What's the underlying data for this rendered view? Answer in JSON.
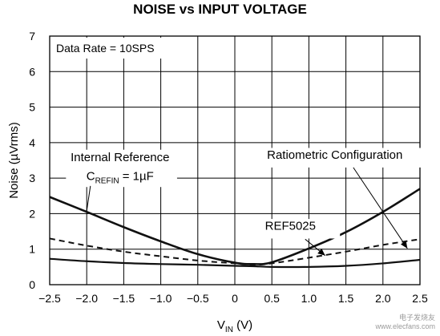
{
  "chart_data": {
    "type": "line",
    "title": "NOISE vs INPUT VOLTAGE",
    "xlabel": "V",
    "xlabel_sub": "IN",
    "xlabel_unit": " (V)",
    "ylabel": "Noise (µVrms)",
    "xlim": [
      -2.5,
      2.5
    ],
    "ylim": [
      0,
      7
    ],
    "xticks": [
      -2.5,
      -2.0,
      -1.5,
      -1.0,
      -0.5,
      0,
      0.5,
      1.0,
      1.5,
      2.0,
      2.5
    ],
    "xtick_labels": [
      "−2.5",
      "−2.0",
      "−1.5",
      "−1.0",
      "−0.5",
      "0",
      "0.5",
      "1.0",
      "1.5",
      "2.0",
      "2.5"
    ],
    "yticks": [
      0,
      1,
      2,
      3,
      4,
      5,
      6,
      7
    ],
    "ytick_labels": [
      "0",
      "1",
      "2",
      "3",
      "4",
      "5",
      "6",
      "7"
    ],
    "grid": true,
    "x": [
      -2.5,
      -2.0,
      -1.5,
      -1.0,
      -0.5,
      0,
      0.25,
      0.5,
      1.0,
      1.5,
      2.0,
      2.5
    ],
    "series": [
      {
        "style": "solid-bold",
        "values": [
          2.47,
          2.05,
          1.62,
          1.22,
          0.86,
          0.62,
          0.58,
          0.63,
          1.02,
          1.48,
          2.05,
          2.7
        ]
      },
      {
        "style": "dashed",
        "values": [
          1.3,
          1.1,
          0.93,
          0.8,
          0.68,
          0.6,
          0.56,
          0.6,
          0.76,
          0.93,
          1.12,
          1.28
        ]
      },
      {
        "style": "solid",
        "values": [
          0.73,
          0.66,
          0.61,
          0.58,
          0.56,
          0.53,
          0.52,
          0.5,
          0.5,
          0.53,
          0.6,
          0.7
        ]
      }
    ],
    "annotations": {
      "data_rate": "Data Rate = 10SPS",
      "internal_ref": "Internal Reference",
      "crefin_main": "C",
      "crefin_sub": "REFIN",
      "crefin_value": " = 1µF",
      "ratiometric": "Ratiometric Configuration",
      "ref5025": "REF5025"
    }
  },
  "watermark": {
    "line1": "电子发烧友",
    "line2": "www.elecfans.com"
  }
}
